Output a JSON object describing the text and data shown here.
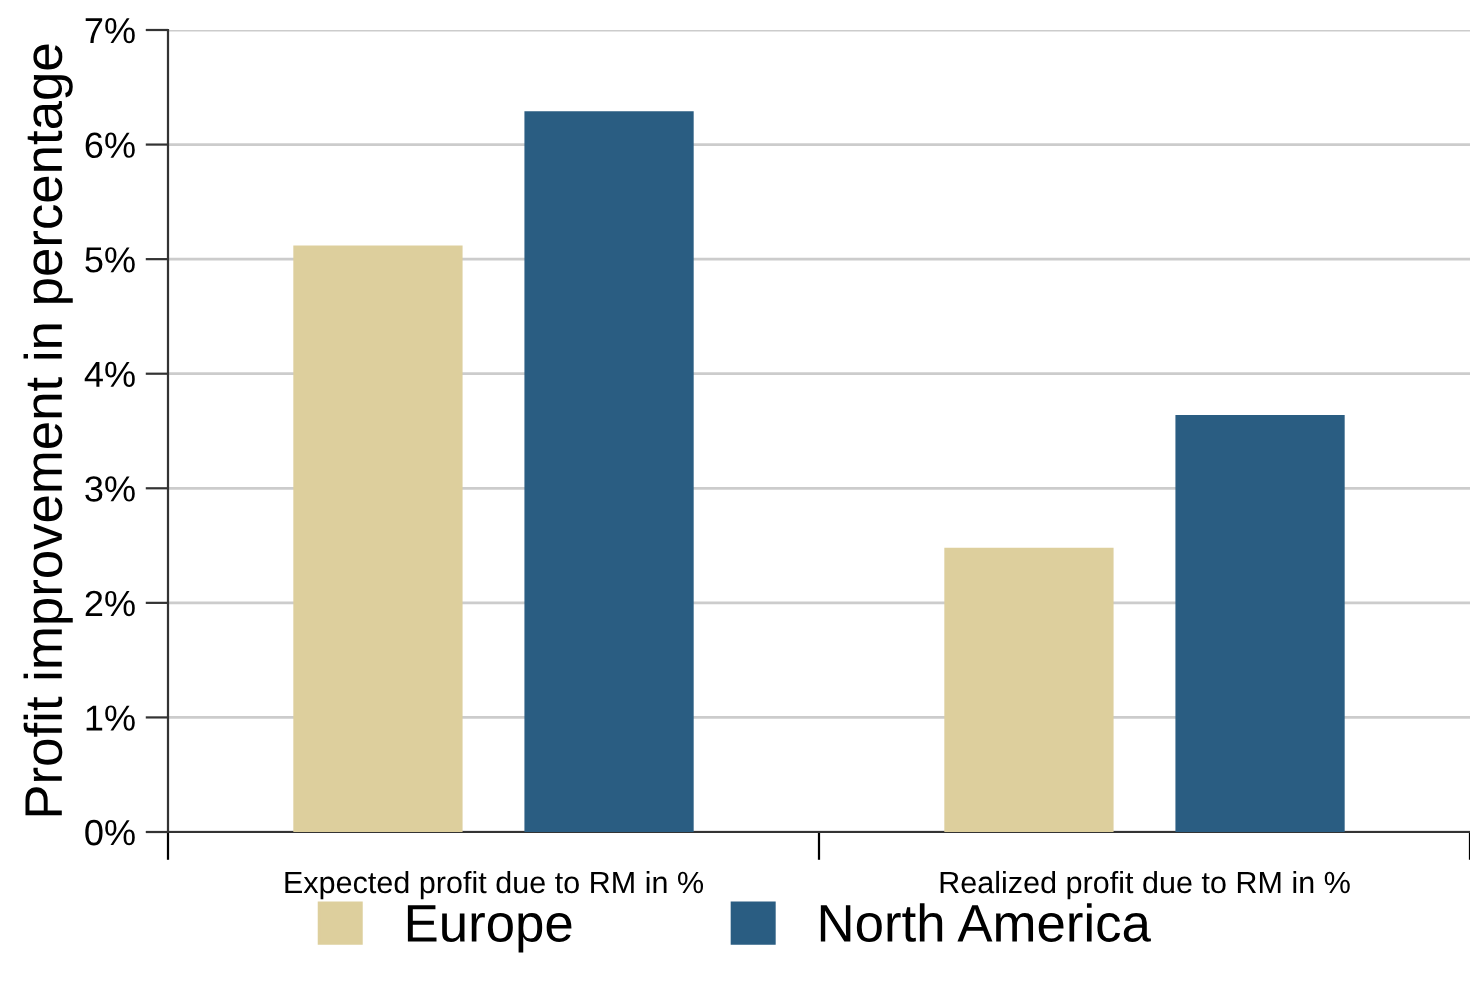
{
  "chart_data": {
    "type": "bar",
    "ylabel": "Profit improvement in percentage",
    "categories": [
      "Expected profit due to RM in %",
      "Realized profit due to RM in %"
    ],
    "series": [
      {
        "name": "Europe",
        "color": "#ddcf9d",
        "values": [
          5.12,
          2.48
        ]
      },
      {
        "name": "North America",
        "color": "#2a5d82",
        "values": [
          6.29,
          3.64
        ]
      }
    ],
    "ylim": [
      0,
      7
    ],
    "yticks": [
      {
        "value": 0,
        "label": "0%"
      },
      {
        "value": 1,
        "label": "1%"
      },
      {
        "value": 2,
        "label": "2%"
      },
      {
        "value": 3,
        "label": "3%"
      },
      {
        "value": 4,
        "label": "4%"
      },
      {
        "value": 5,
        "label": "5%"
      },
      {
        "value": 6,
        "label": "6%"
      },
      {
        "value": 7,
        "label": "7%"
      }
    ],
    "grid": "y",
    "legend": "bottom"
  }
}
